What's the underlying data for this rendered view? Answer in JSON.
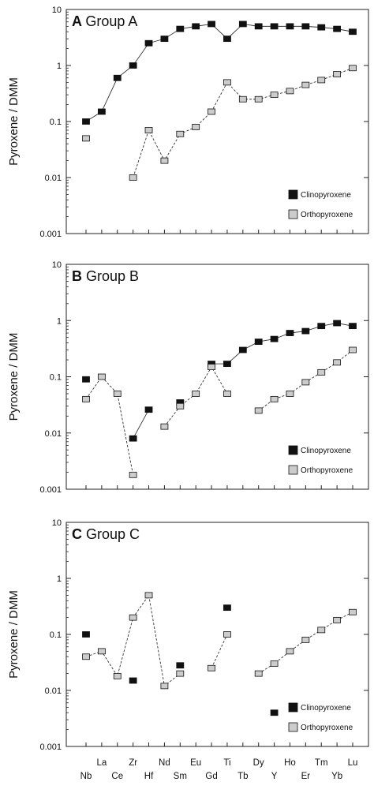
{
  "chart_data": [
    {
      "type": "line",
      "panel_letter": "A",
      "title": "Group  A",
      "ylabel": "Pyroxene / DMM",
      "yscale": "log",
      "ylim": [
        0.001,
        10
      ],
      "yticks": [
        "0.001",
        "0.01",
        "0.1",
        "1",
        "10"
      ],
      "categories": [
        "Nb",
        "La",
        "Ce",
        "Zr",
        "Hf",
        "Nd",
        "Sm",
        "Eu",
        "Gd",
        "Ti",
        "Tb",
        "Dy",
        "Y",
        "Ho",
        "Er",
        "Tm",
        "Yb",
        "Lu"
      ],
      "legend": [
        "Clinopyroxene",
        "Orthopyroxene"
      ],
      "legend_position": "bottom-right",
      "series": [
        {
          "name": "Clinopyroxene",
          "color": "#111111",
          "values": [
            0.1,
            0.15,
            0.6,
            1.0,
            2.5,
            3.0,
            4.5,
            5.0,
            5.5,
            3.0,
            5.5,
            5.0,
            5.0,
            5.0,
            5.0,
            4.8,
            4.5,
            4.0
          ]
        },
        {
          "name": "Orthopyroxene",
          "color": "#cccccc",
          "values": [
            0.05,
            null,
            null,
            0.01,
            0.07,
            0.02,
            0.06,
            0.08,
            0.15,
            0.5,
            0.25,
            0.25,
            0.3,
            0.35,
            0.45,
            0.55,
            0.7,
            0.9
          ]
        }
      ]
    },
    {
      "type": "line",
      "panel_letter": "B",
      "title": "Group  B",
      "ylabel": "Pyroxene / DMM",
      "yscale": "log",
      "ylim": [
        0.001,
        10
      ],
      "yticks": [
        "0.001",
        "0.01",
        "0.1",
        "1",
        "10"
      ],
      "categories": [
        "Nb",
        "La",
        "Ce",
        "Zr",
        "Hf",
        "Nd",
        "Sm",
        "Eu",
        "Gd",
        "Ti",
        "Tb",
        "Dy",
        "Y",
        "Ho",
        "Er",
        "Tm",
        "Yb",
        "Lu"
      ],
      "legend": [
        "Clinopyroxene",
        "Orthopyroxene"
      ],
      "legend_position": "bottom-right",
      "series": [
        {
          "name": "Clinopyroxene",
          "color": "#111111",
          "values": [
            0.09,
            null,
            null,
            0.008,
            0.026,
            null,
            0.035,
            null,
            0.17,
            0.17,
            0.3,
            0.42,
            0.47,
            0.6,
            0.65,
            0.8,
            0.9,
            0.8
          ]
        },
        {
          "name": "Orthopyroxene",
          "color": "#cccccc",
          "values": [
            0.04,
            0.1,
            0.05,
            0.0018,
            null,
            0.013,
            0.03,
            0.05,
            0.15,
            0.05,
            null,
            0.025,
            0.04,
            0.05,
            0.08,
            0.12,
            0.18,
            0.3
          ]
        }
      ]
    },
    {
      "type": "line",
      "panel_letter": "C",
      "title": "Group  C",
      "ylabel": "Pyroxene / DMM",
      "yscale": "log",
      "ylim": [
        0.001,
        10
      ],
      "yticks": [
        "0.001",
        "0.01",
        "0.1",
        "1",
        "10"
      ],
      "categories": [
        "Nb",
        "La",
        "Ce",
        "Zr",
        "Hf",
        "Nd",
        "Sm",
        "Eu",
        "Gd",
        "Ti",
        "Tb",
        "Dy",
        "Y",
        "Ho",
        "Er",
        "Tm",
        "Yb",
        "Lu"
      ],
      "legend": [
        "Clinopyroxene",
        "Orthopyroxene"
      ],
      "legend_position": "bottom-right",
      "series": [
        {
          "name": "Clinopyroxene",
          "color": "#111111",
          "values": [
            0.1,
            null,
            null,
            0.015,
            null,
            null,
            0.028,
            null,
            null,
            0.3,
            null,
            null,
            0.004,
            null,
            null,
            null,
            null,
            null
          ]
        },
        {
          "name": "Orthopyroxene",
          "color": "#cccccc",
          "values": [
            0.04,
            0.05,
            0.018,
            0.2,
            0.5,
            0.012,
            0.02,
            null,
            0.025,
            0.1,
            null,
            0.02,
            0.03,
            0.05,
            0.08,
            0.12,
            0.18,
            0.25
          ]
        }
      ]
    }
  ]
}
